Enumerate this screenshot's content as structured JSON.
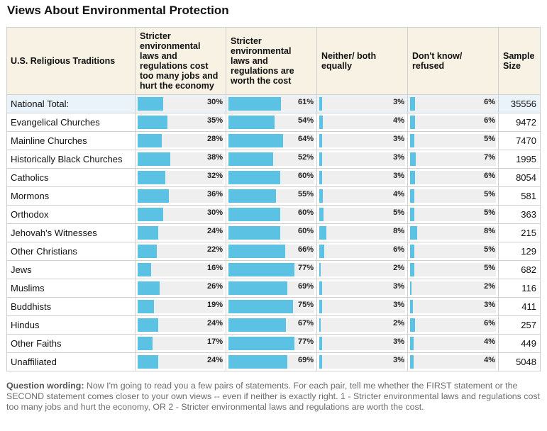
{
  "page_title": "Views About Environmental Protection",
  "chart_data": {
    "type": "table",
    "title": "Views About Environmental Protection",
    "columns": [
      "U.S. Religious Traditions",
      "Stricter environmental laws and regulations cost too many jobs and hurt the economy",
      "Stricter environmental laws and regulations are worth the cost",
      "Neither/ both equally",
      "Don't know/ refused",
      "Sample Size"
    ],
    "rows": [
      {
        "name": "National Total:",
        "cost_jobs": 30,
        "worth_cost": 61,
        "neither": 3,
        "dont_know": 6,
        "sample": "35556"
      },
      {
        "name": "Evangelical Churches",
        "cost_jobs": 35,
        "worth_cost": 54,
        "neither": 4,
        "dont_know": 6,
        "sample": "9472"
      },
      {
        "name": "Mainline Churches",
        "cost_jobs": 28,
        "worth_cost": 64,
        "neither": 3,
        "dont_know": 5,
        "sample": "7470"
      },
      {
        "name": "Historically Black Churches",
        "cost_jobs": 38,
        "worth_cost": 52,
        "neither": 3,
        "dont_know": 7,
        "sample": "1995"
      },
      {
        "name": "Catholics",
        "cost_jobs": 32,
        "worth_cost": 60,
        "neither": 3,
        "dont_know": 6,
        "sample": "8054"
      },
      {
        "name": "Mormons",
        "cost_jobs": 36,
        "worth_cost": 55,
        "neither": 4,
        "dont_know": 5,
        "sample": "581"
      },
      {
        "name": "Orthodox",
        "cost_jobs": 30,
        "worth_cost": 60,
        "neither": 5,
        "dont_know": 5,
        "sample": "363"
      },
      {
        "name": "Jehovah's Witnesses",
        "cost_jobs": 24,
        "worth_cost": 60,
        "neither": 8,
        "dont_know": 8,
        "sample": "215"
      },
      {
        "name": "Other Christians",
        "cost_jobs": 22,
        "worth_cost": 66,
        "neither": 6,
        "dont_know": 5,
        "sample": "129"
      },
      {
        "name": "Jews",
        "cost_jobs": 16,
        "worth_cost": 77,
        "neither": 2,
        "dont_know": 5,
        "sample": "682"
      },
      {
        "name": "Muslims",
        "cost_jobs": 26,
        "worth_cost": 69,
        "neither": 3,
        "dont_know": 2,
        "sample": "116"
      },
      {
        "name": "Buddhists",
        "cost_jobs": 19,
        "worth_cost": 75,
        "neither": 3,
        "dont_know": 3,
        "sample": "411"
      },
      {
        "name": "Hindus",
        "cost_jobs": 24,
        "worth_cost": 67,
        "neither": 2,
        "dont_know": 6,
        "sample": "257"
      },
      {
        "name": "Other Faiths",
        "cost_jobs": 17,
        "worth_cost": 77,
        "neither": 3,
        "dont_know": 4,
        "sample": "449"
      },
      {
        "name": "Unaffiliated",
        "cost_jobs": 24,
        "worth_cost": 69,
        "neither": 3,
        "dont_know": 4,
        "sample": "5048"
      }
    ],
    "percent_suffix": "%",
    "value_range": [
      0,
      100
    ]
  },
  "colors": {
    "bar": "#5bc2e3",
    "bar_track": "#efefef",
    "header_bg": "#f7f2e4",
    "highlight_row": "#e9f3f9"
  },
  "footnote": {
    "label": "Question wording:",
    "text": " Now I'm going to read you a few pairs of statements. For each pair, tell me whether the FIRST statement or the SECOND statement comes closer to your own views -- even if neither is exactly right. 1 - Stricter environmental laws and regulations cost too many jobs and hurt the economy, OR 2 - Stricter environmental laws and regulations are worth the cost."
  }
}
